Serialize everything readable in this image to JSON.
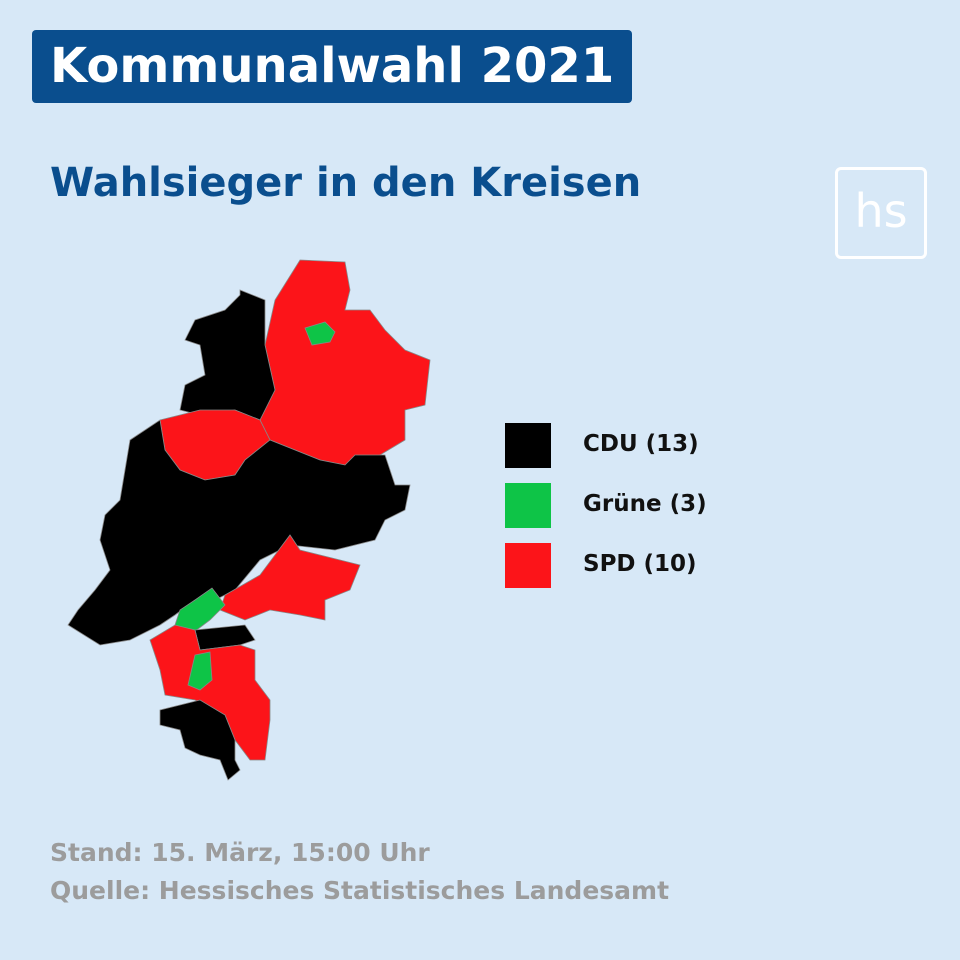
{
  "header": {
    "title": "Kommunalwahl 2021",
    "subtitle": "Wahlsieger in den Kreisen",
    "logo": "hs"
  },
  "legend": [
    {
      "label": "CDU (13)",
      "color": "#000000"
    },
    {
      "label": "Grüne (3)",
      "color": "#0ec447"
    },
    {
      "label": "SPD (10)",
      "color": "#fc1419"
    }
  ],
  "footer": {
    "stand": "Stand: 15. März, 15:00 Uhr",
    "quelle": "Quelle: Hessisches Statistisches Landesamt"
  }
}
